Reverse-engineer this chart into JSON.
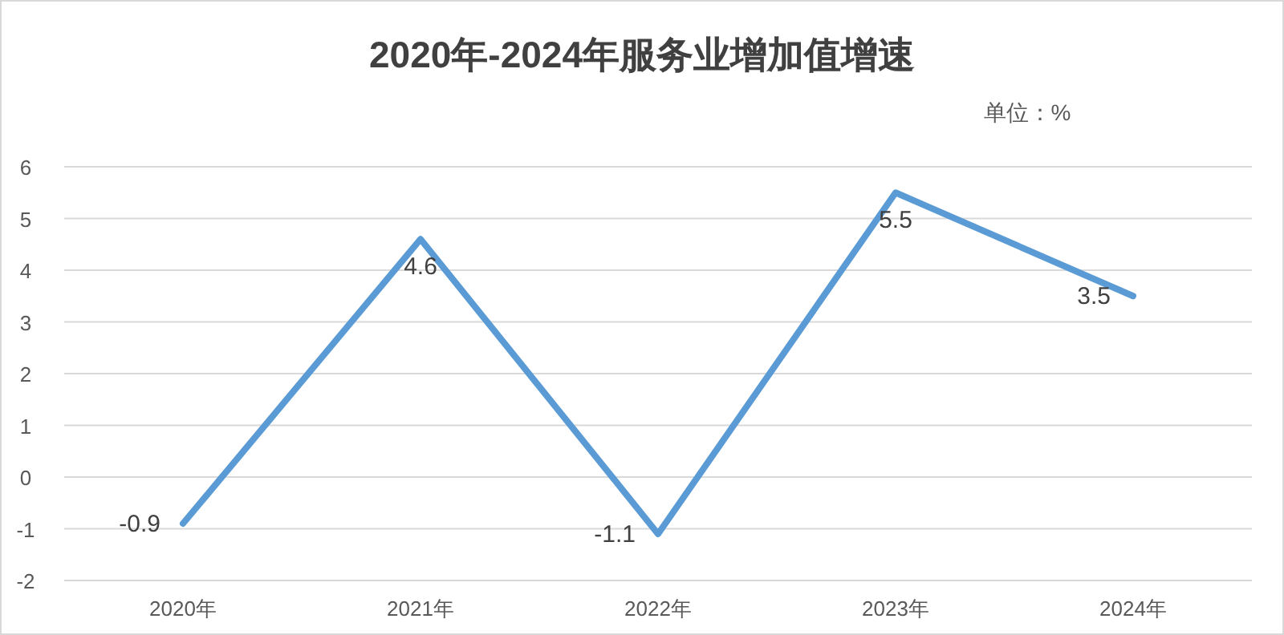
{
  "chart_data": {
    "type": "line",
    "title": "2020年-2024年服务业增加值增速",
    "annotations": [
      "单位：%"
    ],
    "categories": [
      "2020年",
      "2021年",
      "2022年",
      "2023年",
      "2024年"
    ],
    "series": [
      {
        "color": "#5b9bd5",
        "values": [
          -0.9,
          4.6,
          -1.1,
          5.5,
          3.5
        ]
      }
    ],
    "ylim": [
      -2,
      6
    ],
    "yticks": [
      -2,
      -1,
      0,
      1,
      2,
      3,
      4,
      5,
      6
    ],
    "grid": "y",
    "data_labels": true,
    "marker": "none",
    "line_style": "solid"
  }
}
